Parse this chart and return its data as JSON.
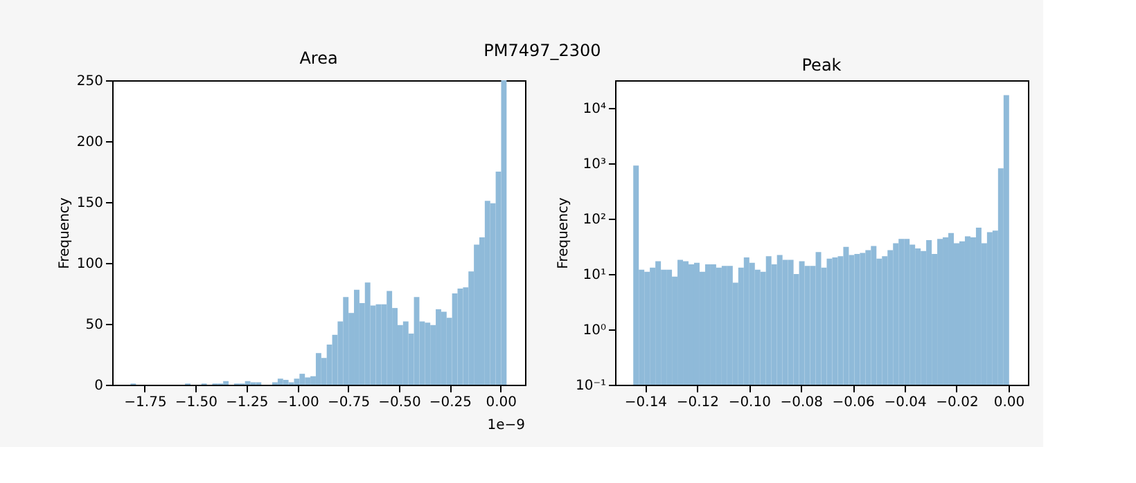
{
  "chart_data": [
    {
      "type": "histogram",
      "title": "Area",
      "ylabel": "Frequency",
      "color": "#8fbad9",
      "grid": false,
      "annotations": [
        "PM7497_2300",
        "1e−9"
      ],
      "bins": [
        -1.82,
        -1.7932,
        -1.7664,
        -1.7396,
        -1.7128,
        -1.686,
        -1.6592,
        -1.6324,
        -1.6056,
        -1.5788,
        -1.552,
        -1.5252,
        -1.4984,
        -1.4716,
        -1.4448,
        -1.418,
        -1.3912,
        -1.3644,
        -1.3376,
        -1.3108,
        -1.284,
        -1.2572,
        -1.2304,
        -1.2036,
        -1.1768,
        -1.15,
        -1.1232,
        -1.0964,
        -1.0696,
        -1.0428,
        -1.016,
        -0.9892,
        -0.9624,
        -0.9356,
        -0.9088,
        -0.882,
        -0.8552,
        -0.8284,
        -0.8016,
        -0.7748,
        -0.748,
        -0.7212,
        -0.6944,
        -0.6676,
        -0.6408,
        -0.614,
        -0.5872,
        -0.5604,
        -0.5336,
        -0.5068,
        -0.48,
        -0.4532,
        -0.4264,
        -0.3996,
        -0.3728,
        -0.346,
        -0.3192,
        -0.2924,
        -0.2656,
        -0.2388,
        -0.212,
        -0.1852,
        -0.1584,
        -0.1316,
        -0.1048,
        -0.078,
        -0.0512,
        -0.0244,
        0.0024,
        0.0292
      ],
      "values": [
        1,
        0,
        0,
        0,
        0,
        0,
        0,
        0,
        0,
        0,
        1,
        0,
        0,
        1,
        0,
        1,
        1,
        3,
        0,
        1,
        1,
        3,
        2,
        2,
        0,
        0,
        2,
        5,
        4,
        2,
        5,
        9,
        6,
        7,
        26,
        22,
        33,
        41,
        52,
        72,
        59,
        78,
        67,
        84,
        65,
        66,
        66,
        77,
        63,
        49,
        52,
        42,
        72,
        52,
        51,
        49,
        62,
        60,
        55,
        75,
        79,
        80,
        93,
        115,
        121,
        151,
        149,
        175,
        250
      ],
      "xlim": [
        -1.91,
        0.12
      ],
      "ylim": [
        0,
        250
      ],
      "xticks": [
        {
          "value": -1.75,
          "label": "−1.75"
        },
        {
          "value": -1.5,
          "label": "−1.50"
        },
        {
          "value": -1.25,
          "label": "−1.25"
        },
        {
          "value": -1.0,
          "label": "−1.00"
        },
        {
          "value": -0.75,
          "label": "−0.75"
        },
        {
          "value": -0.5,
          "label": "−0.50"
        },
        {
          "value": -0.25,
          "label": "−0.25"
        },
        {
          "value": 0,
          "label": "0.00"
        }
      ],
      "yticks": [
        0,
        50,
        100,
        150,
        200,
        250
      ]
    },
    {
      "type": "histogram",
      "title": "Peak",
      "ylabel": "Frequency",
      "color": "#8fbad9",
      "grid": false,
      "log": true,
      "bins": [
        -0.1446,
        -0.14247,
        -0.14034,
        -0.13821,
        -0.13608,
        -0.13395,
        -0.13182,
        -0.12969,
        -0.12756,
        -0.12543,
        -0.1233,
        -0.12117,
        -0.11904,
        -0.11691,
        -0.11478,
        -0.11265,
        -0.11052,
        -0.10839,
        -0.10626,
        -0.10413,
        -0.102,
        -0.09987,
        -0.09774,
        -0.09561,
        -0.09348,
        -0.09135,
        -0.08922,
        -0.08709,
        -0.08496,
        -0.08283,
        -0.0807,
        -0.07857,
        -0.07644,
        -0.07431,
        -0.07218,
        -0.07005,
        -0.06792,
        -0.06579,
        -0.06366,
        -0.06153,
        -0.0594,
        -0.05727,
        -0.05514,
        -0.05301,
        -0.05088,
        -0.04875,
        -0.04662,
        -0.04449,
        -0.04236,
        -0.04023,
        -0.0381,
        -0.03597,
        -0.03384,
        -0.03171,
        -0.02958,
        -0.02745,
        -0.02532,
        -0.02319,
        -0.02106,
        -0.01893,
        -0.0168,
        -0.01467,
        -0.01254,
        -0.01041,
        -0.00828,
        -0.00615,
        -0.00402,
        -0.00189,
        0.00024
      ],
      "values": [
        910,
        12,
        11,
        13,
        17,
        12,
        12,
        9,
        18,
        17,
        15,
        16,
        11,
        15,
        15,
        13,
        14,
        14,
        7,
        13,
        20,
        16,
        12,
        11,
        21,
        15,
        22,
        18,
        18,
        10,
        17,
        14,
        14,
        25,
        13,
        19,
        20,
        21,
        31,
        22,
        23,
        24,
        27,
        32,
        19,
        21,
        27,
        36,
        43,
        43,
        34,
        29,
        26,
        41,
        23,
        43,
        46,
        55,
        36,
        39,
        48,
        46,
        69,
        36,
        57,
        61,
        810,
        17000
      ],
      "xlim": [
        -0.1516,
        0.0075
      ],
      "ylim": [
        0.1,
        31600
      ],
      "xticks": [
        {
          "value": -0.14,
          "label": "−0.14"
        },
        {
          "value": -0.12,
          "label": "−0.12"
        },
        {
          "value": -0.1,
          "label": "−0.10"
        },
        {
          "value": -0.08,
          "label": "−0.08"
        },
        {
          "value": -0.06,
          "label": "−0.06"
        },
        {
          "value": -0.04,
          "label": "−0.04"
        },
        {
          "value": -0.02,
          "label": "−0.02"
        },
        {
          "value": 0,
          "label": "0.00"
        }
      ],
      "yticks": [
        {
          "value": 0.1,
          "label": "10⁻¹"
        },
        {
          "value": 1,
          "label": "10⁰"
        },
        {
          "value": 10,
          "label": "10¹"
        },
        {
          "value": 100,
          "label": "10²"
        },
        {
          "value": 1000,
          "label": "10³"
        },
        {
          "value": 10000,
          "label": "10⁴"
        }
      ]
    }
  ]
}
